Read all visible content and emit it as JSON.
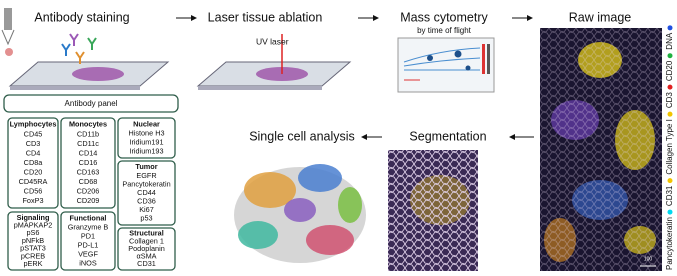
{
  "titles": {
    "staining": "Antibody staining",
    "ablation": "Laser tissue ablation",
    "uv_laser": "UV laser",
    "cytometry": "Mass cytometry",
    "tof": "by time of flight",
    "raw": "Raw image",
    "segmentation": "Segmentation",
    "analysis": "Single cell analysis"
  },
  "panel": {
    "title": "Antibody panel",
    "groups": [
      {
        "name": "Lymphocytes",
        "markers": [
          "CD45",
          "CD3",
          "CD4",
          "CD8a",
          "CD20",
          "CD45RA",
          "CD56",
          "FoxP3"
        ]
      },
      {
        "name": "Monocytes",
        "markers": [
          "CD11b",
          "CD11c",
          "CD14",
          "CD16",
          "CD163",
          "CD68",
          "CD206",
          "CD209"
        ]
      },
      {
        "name": "Nuclear",
        "markers": [
          "Histone H3",
          "Iridium191",
          "Iridium193"
        ]
      },
      {
        "name": "Tumor",
        "markers": [
          "EGFR",
          "Pancytokeratin",
          "CD44",
          "CD36",
          "Ki67",
          "p53"
        ]
      },
      {
        "name": "Signaling",
        "markers": [
          "pMAPKAP2",
          "pS6",
          "pNFkB",
          "pSTAT3",
          "pCREB",
          "pERK"
        ]
      },
      {
        "name": "Functional",
        "markers": [
          "Granzyme B",
          "PD1",
          "PD-L1",
          "VEGF",
          "iNOS"
        ]
      },
      {
        "name": "Structural",
        "markers": [
          "Collagen 1",
          "Podoplanin",
          "αSMA",
          "CD31"
        ]
      }
    ]
  },
  "raw_image_legend": [
    "Pancytokeratin",
    "CD31",
    "Collagen Type I",
    "CD3",
    "CD20",
    "DNA"
  ],
  "scale_bar": "100"
}
